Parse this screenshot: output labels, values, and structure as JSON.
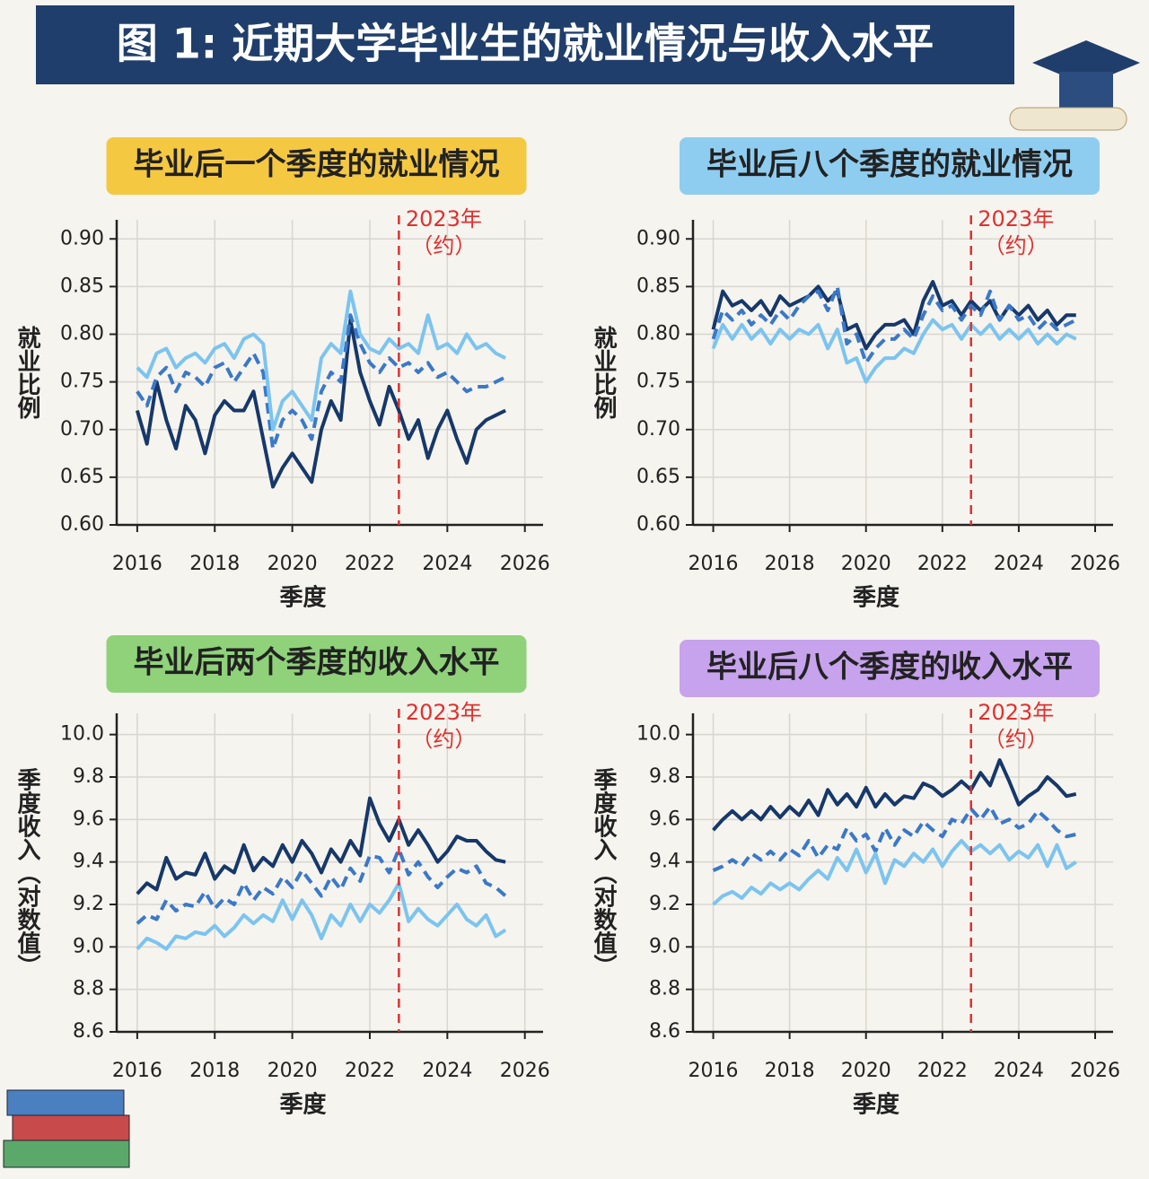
{
  "title": "图 1: 近期大学毕业生的就业情况与收入水平",
  "chart_data": [
    {
      "type": "line",
      "title": "毕业后一个季度的就业情况",
      "title_color": "#f5c842",
      "ylabel": "就业比例",
      "xlabel": "季度",
      "xlim": [
        2015.47,
        2026.47
      ],
      "ylim": [
        0.6,
        0.92
      ],
      "grid": true,
      "xticks": [
        2016,
        2018,
        2020,
        2022,
        2024,
        2026
      ],
      "yticks": [
        {
          "value": 0.6,
          "label": "0.60"
        },
        0.65,
        {
          "value": 0.7,
          "label": "0.70"
        },
        0.75,
        {
          "value": 0.8,
          "label": "0.80"
        },
        0.85,
        {
          "value": 0.9,
          "label": "0.90"
        }
      ],
      "annotation": {
        "x": 2022.75,
        "lines": [
          "2023年",
          "（约）"
        ],
        "color": "#e03030"
      },
      "x": [
        2016,
        2016.25,
        2016.5,
        2016.75,
        2017,
        2017.25,
        2017.5,
        2017.75,
        2018,
        2018.25,
        2018.5,
        2018.75,
        2019,
        2019.25,
        2019.5,
        2019.75,
        2020,
        2020.25,
        2020.5,
        2020.75,
        2021,
        2021.25,
        2021.5,
        2021.75,
        2022,
        2022.25,
        2022.5,
        2022.75,
        2023,
        2023.25,
        2023.5,
        2023.75,
        2024,
        2024.25,
        2024.5,
        2024.75,
        2025,
        2025.25,
        2025.5
      ],
      "series": [
        {
          "color": "#16386a",
          "style": "solid",
          "values": [
            0.72,
            0.685,
            0.75,
            0.71,
            0.68,
            0.725,
            0.71,
            0.675,
            0.715,
            0.73,
            0.72,
            0.72,
            0.74,
            0.69,
            0.64,
            0.66,
            0.675,
            0.66,
            0.645,
            0.7,
            0.73,
            0.71,
            0.815,
            0.76,
            0.73,
            0.705,
            0.745,
            0.72,
            0.69,
            0.71,
            0.67,
            0.7,
            0.72,
            0.69,
            0.665,
            0.7,
            0.71,
            0.715,
            0.72
          ]
        },
        {
          "color": "#3a78c9",
          "style": "dashed",
          "values": [
            0.74,
            0.725,
            0.755,
            0.765,
            0.74,
            0.76,
            0.755,
            0.745,
            0.765,
            0.77,
            0.75,
            0.765,
            0.78,
            0.76,
            0.68,
            0.71,
            0.72,
            0.71,
            0.69,
            0.74,
            0.76,
            0.75,
            0.82,
            0.79,
            0.77,
            0.76,
            0.775,
            0.765,
            0.77,
            0.76,
            0.77,
            0.755,
            0.76,
            0.75,
            0.74,
            0.745,
            0.745,
            0.75,
            0.755
          ]
        },
        {
          "color": "#7cc4f0",
          "style": "solid",
          "values": [
            0.765,
            0.755,
            0.78,
            0.785,
            0.765,
            0.775,
            0.78,
            0.77,
            0.785,
            0.79,
            0.775,
            0.795,
            0.8,
            0.79,
            0.7,
            0.73,
            0.74,
            0.725,
            0.71,
            0.775,
            0.79,
            0.78,
            0.845,
            0.8,
            0.785,
            0.78,
            0.795,
            0.785,
            0.79,
            0.78,
            0.82,
            0.785,
            0.79,
            0.78,
            0.8,
            0.785,
            0.79,
            0.78,
            0.775
          ]
        }
      ]
    },
    {
      "type": "line",
      "title": "毕业后八个季度的就业情况",
      "title_color": "#8fcdf0",
      "ylabel": "就业比例",
      "xlabel": "季度",
      "xlim": [
        2015.47,
        2026.47
      ],
      "ylim": [
        0.6,
        0.92
      ],
      "grid": true,
      "xticks": [
        2016,
        2018,
        2020,
        2022,
        2024,
        2026
      ],
      "yticks": [
        {
          "value": 0.6,
          "label": "0.60"
        },
        0.65,
        {
          "value": 0.7,
          "label": "0.70"
        },
        0.75,
        {
          "value": 0.8,
          "label": "0.80"
        },
        0.85,
        {
          "value": 0.9,
          "label": "0.90"
        }
      ],
      "annotation": {
        "x": 2022.75,
        "lines": [
          "2023年",
          "（约）"
        ],
        "color": "#e03030"
      },
      "x": [
        2016,
        2016.25,
        2016.5,
        2016.75,
        2017,
        2017.25,
        2017.5,
        2017.75,
        2018,
        2018.25,
        2018.5,
        2018.75,
        2019,
        2019.25,
        2019.5,
        2019.75,
        2020,
        2020.25,
        2020.5,
        2020.75,
        2021,
        2021.25,
        2021.5,
        2021.75,
        2022,
        2022.25,
        2022.5,
        2022.75,
        2023,
        2023.25,
        2023.5,
        2023.75,
        2024,
        2024.25,
        2024.5,
        2024.75,
        2025,
        2025.25,
        2025.5
      ],
      "series": [
        {
          "color": "#16386a",
          "style": "solid",
          "values": [
            0.805,
            0.845,
            0.83,
            0.835,
            0.825,
            0.835,
            0.82,
            0.84,
            0.83,
            0.835,
            0.84,
            0.85,
            0.835,
            0.845,
            0.805,
            0.81,
            0.785,
            0.8,
            0.81,
            0.81,
            0.815,
            0.8,
            0.835,
            0.855,
            0.83,
            0.835,
            0.82,
            0.835,
            0.825,
            0.835,
            0.815,
            0.83,
            0.82,
            0.83,
            0.815,
            0.825,
            0.81,
            0.82,
            0.82
          ]
        },
        {
          "color": "#3a78c9",
          "style": "dashed",
          "values": [
            0.795,
            0.825,
            0.815,
            0.825,
            0.81,
            0.82,
            0.81,
            0.825,
            0.815,
            0.83,
            0.84,
            0.845,
            0.825,
            0.85,
            0.79,
            0.8,
            0.77,
            0.785,
            0.795,
            0.795,
            0.805,
            0.795,
            0.82,
            0.84,
            0.825,
            0.83,
            0.815,
            0.83,
            0.82,
            0.845,
            0.815,
            0.83,
            0.815,
            0.82,
            0.805,
            0.815,
            0.805,
            0.81,
            0.815
          ]
        },
        {
          "color": "#7cc4f0",
          "style": "solid",
          "values": [
            0.785,
            0.81,
            0.795,
            0.81,
            0.795,
            0.805,
            0.79,
            0.805,
            0.795,
            0.805,
            0.8,
            0.81,
            0.785,
            0.805,
            0.77,
            0.775,
            0.75,
            0.765,
            0.775,
            0.775,
            0.785,
            0.78,
            0.8,
            0.815,
            0.805,
            0.81,
            0.795,
            0.81,
            0.8,
            0.81,
            0.795,
            0.805,
            0.795,
            0.805,
            0.79,
            0.8,
            0.79,
            0.8,
            0.795
          ]
        }
      ]
    },
    {
      "type": "line",
      "title": "毕业后两个季度的收入水平",
      "title_color": "#8fd27a",
      "ylabel": "季度收入（对数值）",
      "xlabel": "季度",
      "xlim": [
        2015.47,
        2026.47
      ],
      "ylim": [
        8.6,
        10.1
      ],
      "grid": true,
      "xticks": [
        2016,
        2018,
        2020,
        2022,
        2024,
        2026
      ],
      "yticks": [
        8.6,
        8.8,
        {
          "value": 9,
          "label": "9.0"
        },
        9.2,
        9.4,
        9.6,
        9.8,
        {
          "value": 10,
          "label": "10.0"
        }
      ],
      "annotation": {
        "x": 2022.75,
        "lines": [
          "2023年",
          "（约）"
        ],
        "color": "#e03030"
      },
      "x": [
        2016,
        2016.25,
        2016.5,
        2016.75,
        2017,
        2017.25,
        2017.5,
        2017.75,
        2018,
        2018.25,
        2018.5,
        2018.75,
        2019,
        2019.25,
        2019.5,
        2019.75,
        2020,
        2020.25,
        2020.5,
        2020.75,
        2021,
        2021.25,
        2021.5,
        2021.75,
        2022,
        2022.25,
        2022.5,
        2022.75,
        2023,
        2023.25,
        2023.5,
        2023.75,
        2024,
        2024.25,
        2024.5,
        2024.75,
        2025,
        2025.25,
        2025.5
      ],
      "series": [
        {
          "color": "#16386a",
          "style": "solid",
          "values": [
            9.25,
            9.3,
            9.27,
            9.42,
            9.32,
            9.35,
            9.34,
            9.44,
            9.32,
            9.38,
            9.35,
            9.48,
            9.36,
            9.42,
            9.38,
            9.48,
            9.4,
            9.5,
            9.44,
            9.35,
            9.46,
            9.4,
            9.5,
            9.43,
            9.7,
            9.58,
            9.5,
            9.6,
            9.48,
            9.55,
            9.48,
            9.4,
            9.45,
            9.52,
            9.5,
            9.5,
            9.45,
            9.41,
            9.4
          ]
        },
        {
          "color": "#3a78c9",
          "style": "dashed",
          "values": [
            9.11,
            9.15,
            9.13,
            9.22,
            9.17,
            9.2,
            9.19,
            9.26,
            9.18,
            9.23,
            9.2,
            9.3,
            9.22,
            9.28,
            9.25,
            9.33,
            9.28,
            9.36,
            9.3,
            9.24,
            9.33,
            9.27,
            9.37,
            9.31,
            9.43,
            9.42,
            9.35,
            9.46,
            9.34,
            9.4,
            9.33,
            9.28,
            9.33,
            9.37,
            9.35,
            9.38,
            9.3,
            9.28,
            9.24
          ]
        },
        {
          "color": "#7cc4f0",
          "style": "solid",
          "values": [
            8.99,
            9.04,
            9.02,
            8.99,
            9.05,
            9.04,
            9.07,
            9.06,
            9.1,
            9.05,
            9.09,
            9.15,
            9.11,
            9.15,
            9.12,
            9.22,
            9.13,
            9.22,
            9.15,
            9.04,
            9.15,
            9.1,
            9.2,
            9.12,
            9.2,
            9.16,
            9.22,
            9.3,
            9.12,
            9.18,
            9.13,
            9.1,
            9.15,
            9.2,
            9.13,
            9.1,
            9.15,
            9.05,
            9.08
          ]
        }
      ]
    },
    {
      "type": "line",
      "title": "毕业后八个季度的收入水平",
      "title_color": "#c6a3ec",
      "ylabel": "季度收入（对数值）",
      "xlabel": "季度",
      "xlim": [
        2015.47,
        2026.47
      ],
      "ylim": [
        8.6,
        10.1
      ],
      "grid": true,
      "xticks": [
        2016,
        2018,
        2020,
        2022,
        2024,
        2026
      ],
      "yticks": [
        8.6,
        8.8,
        {
          "value": 9,
          "label": "9.0"
        },
        9.2,
        9.4,
        9.6,
        9.8,
        {
          "value": 10,
          "label": "10.0"
        }
      ],
      "annotation": {
        "x": 2022.75,
        "lines": [
          "2023年",
          "（约）"
        ],
        "color": "#e03030"
      },
      "x": [
        2016,
        2016.25,
        2016.5,
        2016.75,
        2017,
        2017.25,
        2017.5,
        2017.75,
        2018,
        2018.25,
        2018.5,
        2018.75,
        2019,
        2019.25,
        2019.5,
        2019.75,
        2020,
        2020.25,
        2020.5,
        2020.75,
        2021,
        2021.25,
        2021.5,
        2021.75,
        2022,
        2022.25,
        2022.5,
        2022.75,
        2023,
        2023.25,
        2023.5,
        2023.75,
        2024,
        2024.25,
        2024.5,
        2024.75,
        2025,
        2025.25,
        2025.5
      ],
      "series": [
        {
          "color": "#16386a",
          "style": "solid",
          "values": [
            9.55,
            9.6,
            9.64,
            9.6,
            9.64,
            9.6,
            9.66,
            9.61,
            9.66,
            9.62,
            9.69,
            9.62,
            9.74,
            9.67,
            9.72,
            9.66,
            9.75,
            9.66,
            9.72,
            9.67,
            9.71,
            9.7,
            9.77,
            9.75,
            9.71,
            9.74,
            9.78,
            9.74,
            9.82,
            9.76,
            9.88,
            9.78,
            9.67,
            9.71,
            9.74,
            9.8,
            9.76,
            9.71,
            9.72
          ]
        },
        {
          "color": "#3a78c9",
          "style": "dashed",
          "values": [
            9.36,
            9.38,
            9.41,
            9.38,
            9.44,
            9.41,
            9.45,
            9.41,
            9.46,
            9.43,
            9.5,
            9.42,
            9.48,
            9.46,
            9.56,
            9.5,
            9.53,
            9.45,
            9.56,
            9.48,
            9.55,
            9.52,
            9.59,
            9.55,
            9.52,
            9.6,
            9.58,
            9.65,
            9.6,
            9.66,
            9.58,
            9.6,
            9.56,
            9.58,
            9.64,
            9.6,
            9.55,
            9.52,
            9.53
          ]
        },
        {
          "color": "#7cc4f0",
          "style": "solid",
          "values": [
            9.2,
            9.24,
            9.26,
            9.23,
            9.28,
            9.25,
            9.3,
            9.27,
            9.3,
            9.27,
            9.32,
            9.36,
            9.32,
            9.42,
            9.36,
            9.46,
            9.35,
            9.44,
            9.3,
            9.41,
            9.38,
            9.44,
            9.4,
            9.46,
            9.38,
            9.45,
            9.5,
            9.45,
            9.48,
            9.44,
            9.48,
            9.41,
            9.45,
            9.42,
            9.48,
            9.38,
            9.48,
            9.37,
            9.4
          ]
        }
      ]
    }
  ]
}
